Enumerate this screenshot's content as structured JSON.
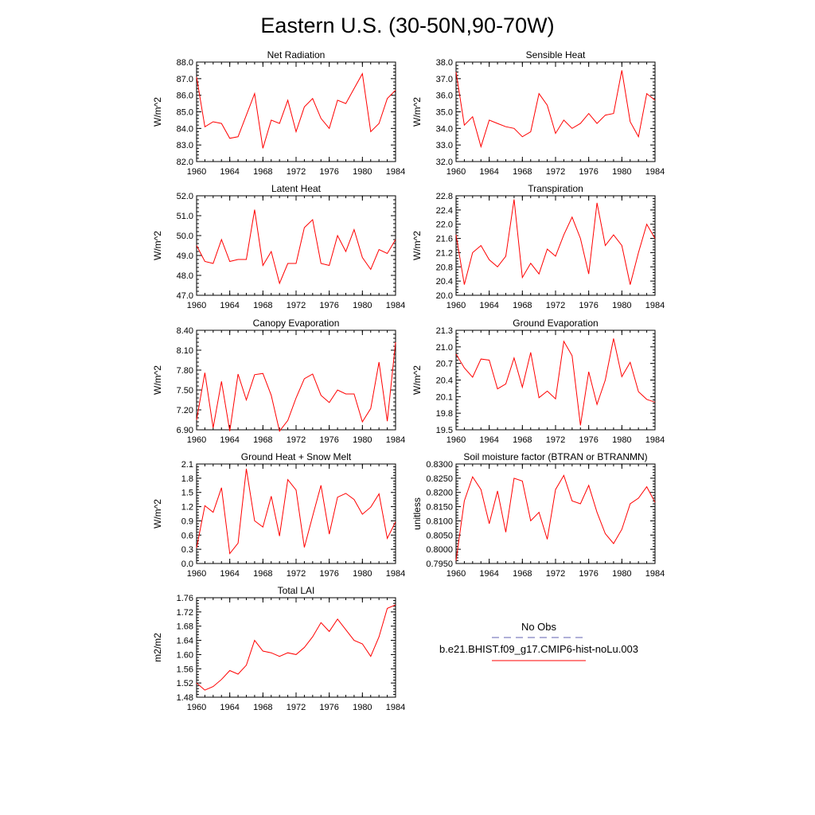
{
  "title": "Eastern U.S. (30-50N,90-70W)",
  "legend": {
    "entries": [
      {
        "label": "No Obs",
        "color": "#6060b0",
        "dash": true
      },
      {
        "label": "b.e21.BHIST.f09_g17.CMIP6-hist-noLu.003",
        "color": "#ff0000",
        "dash": false
      }
    ]
  },
  "chart_data": [
    {
      "type": "line",
      "title": "Net Radiation",
      "ylabel": "W/m^2",
      "ylim": [
        82.0,
        88.0
      ],
      "xlim": [
        1960,
        1984
      ],
      "yticks": [
        "82.0",
        "83.0",
        "84.0",
        "85.0",
        "86.0",
        "87.0",
        "88.0"
      ],
      "xticks": [
        "1960",
        "1964",
        "1968",
        "1972",
        "1976",
        "1980",
        "1984"
      ],
      "x": [
        1960,
        1961,
        1962,
        1963,
        1964,
        1965,
        1966,
        1967,
        1968,
        1969,
        1970,
        1971,
        1972,
        1973,
        1974,
        1975,
        1976,
        1977,
        1978,
        1979,
        1980,
        1981,
        1982,
        1983,
        1984
      ],
      "series": [
        {
          "color": "#ff0000",
          "values": [
            87.1,
            84.1,
            84.4,
            84.3,
            83.4,
            83.5,
            84.8,
            86.1,
            82.8,
            84.5,
            84.3,
            85.7,
            83.8,
            85.3,
            85.8,
            84.6,
            84.0,
            85.7,
            85.5,
            86.4,
            87.3,
            83.8,
            84.3,
            85.8,
            86.3
          ]
        }
      ]
    },
    {
      "type": "line",
      "title": "Sensible Heat",
      "ylabel": "W/m^2",
      "ylim": [
        32.0,
        38.0
      ],
      "xlim": [
        1960,
        1984
      ],
      "yticks": [
        "32.0",
        "33.0",
        "34.0",
        "35.0",
        "36.0",
        "37.0",
        "38.0"
      ],
      "xticks": [
        "1960",
        "1964",
        "1968",
        "1972",
        "1976",
        "1980",
        "1984"
      ],
      "x": [
        1960,
        1961,
        1962,
        1963,
        1964,
        1965,
        1966,
        1967,
        1968,
        1969,
        1970,
        1971,
        1972,
        1973,
        1974,
        1975,
        1976,
        1977,
        1978,
        1979,
        1980,
        1981,
        1982,
        1983,
        1984
      ],
      "series": [
        {
          "color": "#ff0000",
          "values": [
            37.4,
            34.2,
            34.7,
            32.9,
            34.5,
            34.3,
            34.1,
            34.0,
            33.5,
            33.8,
            36.1,
            35.4,
            33.7,
            34.5,
            34.0,
            34.3,
            34.9,
            34.3,
            34.8,
            34.9,
            37.5,
            34.4,
            33.5,
            36.1,
            35.7
          ]
        }
      ]
    },
    {
      "type": "line",
      "title": "Latent Heat",
      "ylabel": "W/m^2",
      "ylim": [
        47.0,
        52.0
      ],
      "xlim": [
        1960,
        1984
      ],
      "yticks": [
        "47.0",
        "48.0",
        "49.0",
        "50.0",
        "51.0",
        "52.0"
      ],
      "xticks": [
        "1960",
        "1964",
        "1968",
        "1972",
        "1976",
        "1980",
        "1984"
      ],
      "x": [
        1960,
        1961,
        1962,
        1963,
        1964,
        1965,
        1966,
        1967,
        1968,
        1969,
        1970,
        1971,
        1972,
        1973,
        1974,
        1975,
        1976,
        1977,
        1978,
        1979,
        1980,
        1981,
        1982,
        1983,
        1984
      ],
      "series": [
        {
          "color": "#ff0000",
          "values": [
            49.5,
            48.7,
            48.6,
            49.8,
            48.7,
            48.8,
            48.8,
            51.3,
            48.5,
            49.2,
            47.6,
            48.6,
            48.6,
            50.4,
            50.8,
            48.6,
            48.5,
            50.0,
            49.2,
            50.3,
            48.9,
            48.3,
            49.3,
            49.1,
            49.8
          ]
        }
      ]
    },
    {
      "type": "line",
      "title": "Transpiration",
      "ylabel": "W/m^2",
      "ylim": [
        20.0,
        22.8
      ],
      "xlim": [
        1960,
        1984
      ],
      "yticks": [
        "20.0",
        "20.4",
        "20.8",
        "21.2",
        "21.6",
        "22.0",
        "22.4",
        "22.8"
      ],
      "xticks": [
        "1960",
        "1964",
        "1968",
        "1972",
        "1976",
        "1980",
        "1984"
      ],
      "x": [
        1960,
        1961,
        1962,
        1963,
        1964,
        1965,
        1966,
        1967,
        1968,
        1969,
        1970,
        1971,
        1972,
        1973,
        1974,
        1975,
        1976,
        1977,
        1978,
        1979,
        1980,
        1981,
        1982,
        1983,
        1984
      ],
      "series": [
        {
          "color": "#ff0000",
          "values": [
            21.7,
            20.3,
            21.2,
            21.4,
            21.0,
            20.8,
            21.1,
            22.7,
            20.5,
            20.9,
            20.6,
            21.3,
            21.1,
            21.7,
            22.2,
            21.6,
            20.6,
            22.6,
            21.4,
            21.7,
            21.4,
            20.3,
            21.2,
            22.0,
            21.6
          ]
        }
      ]
    },
    {
      "type": "line",
      "title": "Canopy Evaporation",
      "ylabel": "W/m^2",
      "ylim": [
        6.9,
        8.4
      ],
      "xlim": [
        1960,
        1984
      ],
      "yticks": [
        "6.90",
        "7.20",
        "7.50",
        "7.80",
        "8.10",
        "8.40"
      ],
      "xticks": [
        "1960",
        "1964",
        "1968",
        "1972",
        "1976",
        "1980",
        "1984"
      ],
      "x": [
        1960,
        1961,
        1962,
        1963,
        1964,
        1965,
        1966,
        1967,
        1968,
        1969,
        1970,
        1971,
        1972,
        1973,
        1974,
        1975,
        1976,
        1977,
        1978,
        1979,
        1980,
        1981,
        1982,
        1983,
        1984
      ],
      "series": [
        {
          "color": "#ff0000",
          "values": [
            7.05,
            7.76,
            6.93,
            7.63,
            6.88,
            7.74,
            7.35,
            7.73,
            7.75,
            7.42,
            6.88,
            7.04,
            7.38,
            7.67,
            7.74,
            7.42,
            7.31,
            7.5,
            7.44,
            7.44,
            7.02,
            7.22,
            7.92,
            7.03,
            8.22
          ]
        }
      ]
    },
    {
      "type": "line",
      "title": "Ground Evaporation",
      "ylabel": "W/m^2",
      "ylim": [
        19.5,
        21.3
      ],
      "xlim": [
        1960,
        1984
      ],
      "yticks": [
        "19.5",
        "19.8",
        "20.1",
        "20.4",
        "20.7",
        "21.0",
        "21.3"
      ],
      "xticks": [
        "1960",
        "1964",
        "1968",
        "1972",
        "1976",
        "1980",
        "1984"
      ],
      "x": [
        1960,
        1961,
        1962,
        1963,
        1964,
        1965,
        1966,
        1967,
        1968,
        1969,
        1970,
        1971,
        1972,
        1973,
        1974,
        1975,
        1976,
        1977,
        1978,
        1979,
        1980,
        1981,
        1982,
        1983,
        1984
      ],
      "series": [
        {
          "color": "#ff0000",
          "values": [
            20.87,
            20.62,
            20.45,
            20.78,
            20.76,
            20.24,
            20.33,
            20.8,
            20.27,
            20.9,
            20.08,
            20.2,
            20.06,
            21.1,
            20.84,
            19.58,
            20.55,
            19.96,
            20.4,
            21.15,
            20.46,
            20.72,
            20.19,
            20.05,
            20.0
          ]
        }
      ]
    },
    {
      "type": "line",
      "title": "Ground Heat + Snow Melt",
      "ylabel": "W/m^2",
      "ylim": [
        0.0,
        2.1
      ],
      "xlim": [
        1960,
        1984
      ],
      "yticks": [
        "0.0",
        "0.3",
        "0.6",
        "0.9",
        "1.2",
        "1.5",
        "1.8",
        "2.1"
      ],
      "xticks": [
        "1960",
        "1964",
        "1968",
        "1972",
        "1976",
        "1980",
        "1984"
      ],
      "x": [
        1960,
        1961,
        1962,
        1963,
        1964,
        1965,
        1966,
        1967,
        1968,
        1969,
        1970,
        1971,
        1972,
        1973,
        1974,
        1975,
        1976,
        1977,
        1978,
        1979,
        1980,
        1981,
        1982,
        1983,
        1984
      ],
      "series": [
        {
          "color": "#ff0000",
          "values": [
            0.33,
            1.22,
            1.08,
            1.6,
            0.21,
            0.43,
            2.0,
            0.9,
            0.77,
            1.42,
            0.58,
            1.77,
            1.55,
            0.34,
            1.0,
            1.65,
            0.62,
            1.4,
            1.48,
            1.35,
            1.04,
            1.19,
            1.47,
            0.53,
            0.88
          ]
        }
      ]
    },
    {
      "type": "line",
      "title": "Soil moisture factor (BTRAN or BTRANMN)",
      "ylabel": "unitless",
      "ylim": [
        0.795,
        0.83
      ],
      "xlim": [
        1960,
        1984
      ],
      "yticks": [
        "0.7950",
        "0.8000",
        "0.8050",
        "0.8100",
        "0.8150",
        "0.8200",
        "0.8250",
        "0.8300"
      ],
      "xticks": [
        "1960",
        "1964",
        "1968",
        "1972",
        "1976",
        "1980",
        "1984"
      ],
      "x": [
        1960,
        1961,
        1962,
        1963,
        1964,
        1965,
        1966,
        1967,
        1968,
        1969,
        1970,
        1971,
        1972,
        1973,
        1974,
        1975,
        1976,
        1977,
        1978,
        1979,
        1980,
        1981,
        1982,
        1983,
        1984
      ],
      "series": [
        {
          "color": "#ff0000",
          "values": [
            0.796,
            0.817,
            0.8255,
            0.821,
            0.809,
            0.8205,
            0.806,
            0.825,
            0.824,
            0.81,
            0.813,
            0.8035,
            0.821,
            0.826,
            0.817,
            0.816,
            0.8225,
            0.813,
            0.8055,
            0.802,
            0.807,
            0.816,
            0.818,
            0.822,
            0.8165
          ]
        }
      ]
    },
    {
      "type": "line",
      "title": "Total LAI",
      "ylabel": "m2/m2",
      "ylim": [
        1.48,
        1.76
      ],
      "xlim": [
        1960,
        1984
      ],
      "yticks": [
        "1.48",
        "1.52",
        "1.56",
        "1.60",
        "1.64",
        "1.68",
        "1.72",
        "1.76"
      ],
      "xticks": [
        "1960",
        "1964",
        "1968",
        "1972",
        "1976",
        "1980",
        "1984"
      ],
      "x": [
        1960,
        1961,
        1962,
        1963,
        1964,
        1965,
        1966,
        1967,
        1968,
        1969,
        1970,
        1971,
        1972,
        1973,
        1974,
        1975,
        1976,
        1977,
        1978,
        1979,
        1980,
        1981,
        1982,
        1983,
        1984
      ],
      "series": [
        {
          "color": "#ff0000",
          "values": [
            1.52,
            1.5,
            1.51,
            1.53,
            1.555,
            1.545,
            1.57,
            1.64,
            1.61,
            1.605,
            1.595,
            1.605,
            1.6,
            1.62,
            1.65,
            1.69,
            1.665,
            1.7,
            1.67,
            1.64,
            1.63,
            1.595,
            1.65,
            1.73,
            1.74
          ]
        }
      ]
    }
  ]
}
